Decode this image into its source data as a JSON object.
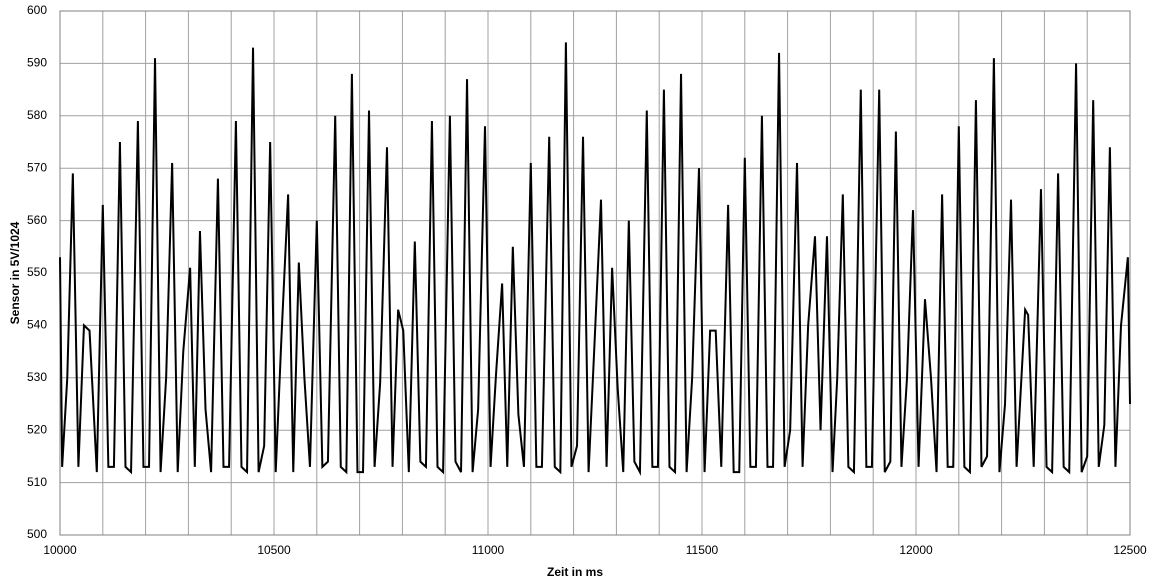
{
  "chart_data": {
    "type": "line",
    "x_label": "Zeit in ms",
    "y_label": "Sensor in 5V/1024",
    "xlim": [
      10000,
      12500
    ],
    "ylim": [
      500,
      600
    ],
    "xticks": [
      10000,
      10500,
      11000,
      11500,
      12000,
      12500
    ],
    "yticks": [
      500,
      510,
      520,
      530,
      540,
      550,
      560,
      570,
      580,
      590,
      600
    ],
    "x_grid_lines": [
      10100,
      10200,
      10300,
      10400,
      10600,
      10700,
      10800,
      10900,
      11100,
      11200,
      11300,
      11400,
      11600,
      11700,
      11800,
      11900,
      12100,
      12200,
      12300,
      12400
    ],
    "grid": true,
    "color": "#000000",
    "x": [
      10000,
      10005,
      10017,
      10030,
      10043,
      10056,
      10069,
      10086,
      10100,
      10113,
      10126,
      10140,
      10153,
      10166,
      10182,
      10195,
      10208,
      10222,
      10235,
      10248,
      10262,
      10275,
      10288,
      10304,
      10315,
      10327,
      10340,
      10353,
      10369,
      10382,
      10395,
      10411,
      10424,
      10437,
      10451,
      10464,
      10477,
      10491,
      10504,
      10517,
      10533,
      10545,
      10558,
      10571,
      10584,
      10600,
      10613,
      10626,
      10643,
      10656,
      10669,
      10682,
      10695,
      10708,
      10722,
      10735,
      10748,
      10764,
      10777,
      10790,
      10802,
      10815,
      10829,
      10842,
      10855,
      10869,
      10882,
      10895,
      10911,
      10924,
      10937,
      10951,
      10964,
      10977,
      10993,
      11006,
      11019,
      11033,
      11045,
      11058,
      11071,
      11084,
      11100,
      11113,
      11126,
      11143,
      11156,
      11169,
      11182,
      11195,
      11208,
      11222,
      11235,
      11248,
      11264,
      11277,
      11290,
      11303,
      11316,
      11329,
      11342,
      11355,
      11371,
      11384,
      11397,
      11411,
      11424,
      11437,
      11451,
      11464,
      11477,
      11493,
      11506,
      11519,
      11532,
      11545,
      11561,
      11574,
      11587,
      11600,
      11613,
      11626,
      11640,
      11653,
      11666,
      11680,
      11693,
      11706,
      11722,
      11735,
      11748,
      11764,
      11777,
      11792,
      11805,
      11816,
      11829,
      11842,
      11855,
      11871,
      11884,
      11897,
      11914,
      11927,
      11940,
      11953,
      11966,
      11979,
      11993,
      12006,
      12021,
      12035,
      12048,
      12061,
      12074,
      12087,
      12100,
      12113,
      12126,
      12140,
      12153,
      12166,
      12182,
      12195,
      12208,
      12222,
      12235,
      12255,
      12262,
      12275,
      12292,
      12305,
      12318,
      12332,
      12345,
      12358,
      12374,
      12387,
      12400,
      12414,
      12427,
      12440,
      12453,
      12466,
      12479,
      12495,
      12500
    ],
    "values": [
      553,
      513,
      530,
      569,
      513,
      540,
      539,
      512,
      563,
      513,
      513,
      575,
      513,
      512,
      579,
      513,
      513,
      591,
      512,
      530,
      571,
      512,
      535,
      551,
      513,
      558,
      524,
      512,
      568,
      513,
      513,
      579,
      513,
      512,
      593,
      512,
      517,
      575,
      512,
      537,
      565,
      512,
      552,
      530,
      513,
      560,
      513,
      514,
      580,
      513,
      512,
      588,
      512,
      512,
      581,
      513,
      529,
      574,
      513,
      543,
      539,
      512,
      556,
      514,
      513,
      579,
      513,
      512,
      580,
      514,
      512,
      587,
      512,
      524,
      578,
      513,
      531,
      548,
      513,
      555,
      523,
      513,
      571,
      513,
      513,
      576,
      513,
      512,
      594,
      513,
      517,
      576,
      512,
      535,
      564,
      513,
      551,
      528,
      512,
      560,
      514,
      512,
      581,
      513,
      513,
      585,
      513,
      512,
      588,
      512,
      530,
      570,
      512,
      539,
      539,
      513,
      563,
      512,
      512,
      572,
      513,
      513,
      580,
      513,
      513,
      592,
      513,
      520,
      571,
      513,
      540,
      557,
      520,
      557,
      512,
      530,
      565,
      513,
      512,
      585,
      513,
      513,
      585,
      512,
      514,
      577,
      513,
      530,
      562,
      513,
      545,
      530,
      512,
      565,
      513,
      513,
      578,
      513,
      512,
      583,
      513,
      515,
      591,
      512,
      525,
      564,
      513,
      543,
      542,
      513,
      566,
      513,
      512,
      569,
      513,
      512,
      590,
      512,
      515,
      583,
      513,
      521,
      574,
      513,
      540,
      553,
      525
    ]
  }
}
